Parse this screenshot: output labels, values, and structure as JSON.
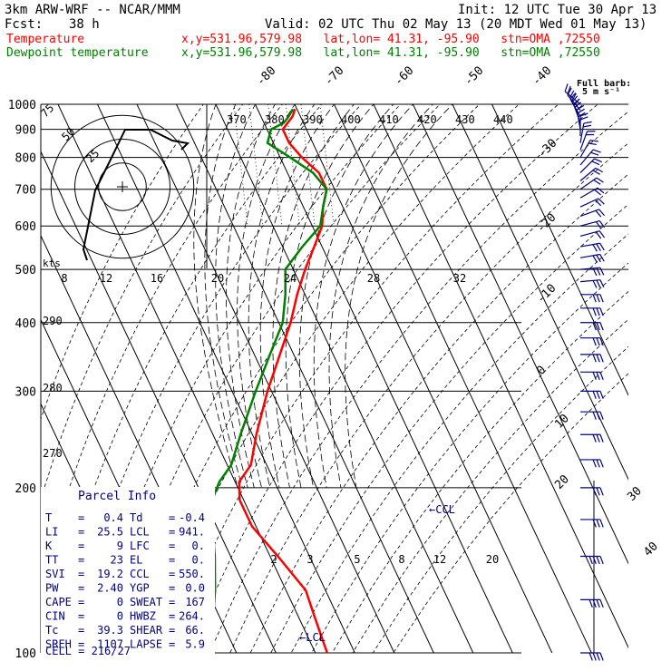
{
  "header": {
    "model": "3km ARW-WRF -- NCAR/MMM",
    "init": "Init: 12 UTC Tue 30 Apr 13",
    "fcst_label": "Fcst:",
    "fcst_value": "38 h",
    "valid": "Valid: 02 UTC Thu 02 May 13 (20 MDT Wed 01 May 13)",
    "temperature_label": "Temperature",
    "dewpoint_label": "Dewpoint temperature",
    "location": "x,y=531.96,579.98   lat,lon= 41.31, -95.90   stn=OMA ,72550"
  },
  "barb_legend": {
    "line1": "Full barb:",
    "line2": "5 m s⁻¹"
  },
  "parcel_info": {
    "title": "Parcel Info",
    "rows": [
      [
        "T",
        "0.4",
        "Td",
        "-0.4"
      ],
      [
        "LI",
        "25.5",
        "LCL",
        "941."
      ],
      [
        "K",
        "9",
        "LFC",
        "0."
      ],
      [
        "TT",
        "23",
        "EL",
        "0."
      ],
      [
        "SVI",
        "19.2",
        "CCL",
        "550."
      ],
      [
        "PW",
        "2.40",
        "YGP",
        "0.0"
      ],
      [
        "CAPE",
        "0",
        "SWEAT",
        "167"
      ],
      [
        "CIN",
        "0",
        "HWBZ",
        "264."
      ],
      [
        "Tc",
        "39.3",
        "SHEAR",
        "66."
      ],
      [
        "SREH",
        "1107",
        "LAPSE",
        "5.9"
      ]
    ],
    "cell_label": "CELL = 216/27"
  },
  "hodograph": {
    "units_label": "kts",
    "ring_labels": [
      "25",
      "50",
      "75"
    ]
  },
  "chart_data": {
    "type": "line",
    "title": "",
    "y_axis": {
      "label": "",
      "scale": "log",
      "range": [
        1000,
        100
      ],
      "ticks": [
        100,
        200,
        300,
        400,
        500,
        600,
        700,
        800,
        900,
        1000
      ]
    },
    "isotherm_labels": [
      -80,
      -70,
      -60,
      -50,
      -40,
      -30,
      -20,
      -10,
      0,
      10,
      20,
      30,
      40
    ],
    "mixing_ratio_labels": [
      "2",
      "3",
      "5",
      "8",
      "12",
      "20"
    ],
    "upper_mixing_ratio_labels": [
      "8",
      "12",
      "16",
      "20",
      "24",
      "28",
      "32"
    ],
    "theta_e_labels": [
      "370",
      "380",
      "390",
      "400",
      "410",
      "420",
      "430",
      "440"
    ],
    "theta_labels": [
      "290",
      "280",
      "270"
    ],
    "annotations": [
      "CCL",
      "LCL"
    ],
    "series": [
      {
        "name": "Temperature",
        "color": "#ff0000",
        "pressure": [
          980,
          950,
          925,
          900,
          850,
          800,
          750,
          700,
          650,
          600,
          550,
          500,
          450,
          400,
          350,
          300,
          250,
          220,
          205,
          190,
          170,
          150,
          130,
          115,
          100
        ],
        "temperature": [
          -0.5,
          -2,
          -4,
          -6,
          -6,
          -4.5,
          -2,
          -2,
          -5,
          -7.5,
          -12,
          -17,
          -22,
          -27,
          -33.5,
          -41,
          -49,
          -54,
          -59,
          -61,
          -61,
          -58,
          -55,
          -56,
          -57
        ]
      },
      {
        "name": "Dewpoint temperature",
        "color": "#008000",
        "pressure": [
          980,
          950,
          925,
          900,
          850,
          800,
          750,
          700,
          650,
          600,
          550,
          500,
          450,
          400,
          350,
          300,
          250,
          220,
          205,
          190,
          170,
          150,
          130,
          115,
          100
        ],
        "temperature": [
          -1,
          -3,
          -5,
          -9,
          -11.5,
          -7.5,
          -3.5,
          -2,
          -5,
          -8,
          -15,
          -22,
          -25,
          -29,
          -36,
          -44,
          -53,
          -59,
          -64,
          -68,
          -71,
          -74,
          -78,
          -82,
          -87
        ]
      }
    ],
    "wind_barbs": {
      "pressure": [
        1000,
        975,
        950,
        925,
        900,
        875,
        850,
        825,
        800,
        775,
        750,
        725,
        700,
        675,
        650,
        625,
        600,
        575,
        550,
        525,
        500,
        475,
        450,
        425,
        400,
        375,
        350,
        325,
        300,
        275,
        250,
        225,
        200,
        175,
        150,
        125,
        100
      ],
      "direction_deg": [
        130,
        140,
        150,
        160,
        170,
        180,
        190,
        200,
        210,
        220,
        225,
        230,
        235,
        240,
        245,
        250,
        255,
        255,
        260,
        260,
        265,
        265,
        270,
        270,
        270,
        270,
        270,
        270,
        270,
        270,
        270,
        270,
        270,
        270,
        270,
        270,
        270
      ],
      "speed_kt": [
        20,
        25,
        30,
        30,
        25,
        20,
        15,
        15,
        15,
        15,
        15,
        15,
        15,
        15,
        15,
        20,
        20,
        20,
        25,
        25,
        25,
        25,
        25,
        25,
        25,
        25,
        30,
        30,
        30,
        30,
        30,
        30,
        30,
        30,
        35,
        35,
        35
      ]
    }
  }
}
